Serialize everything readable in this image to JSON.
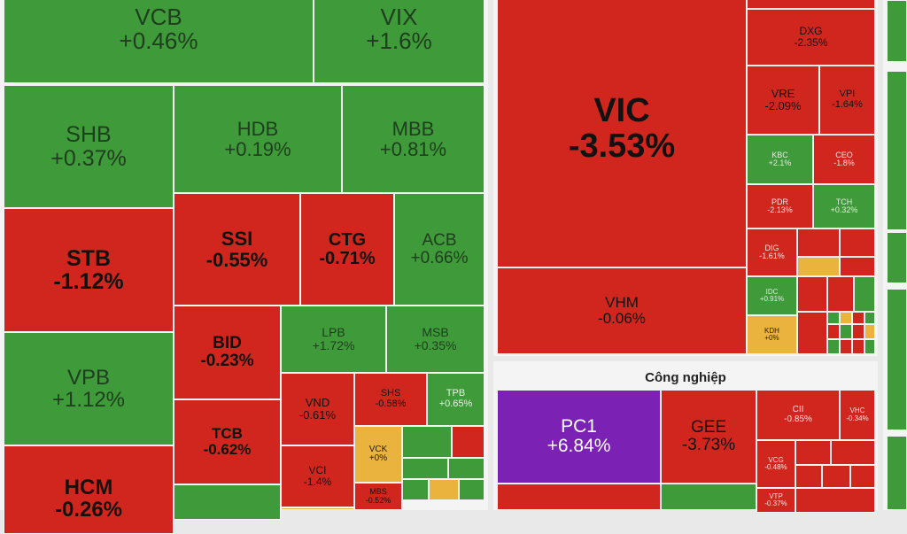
{
  "sector": {
    "industry_title": "Công nghiệp"
  },
  "colors": {
    "up": "#3f9a39",
    "down": "#d1261d",
    "flat": "#e9b33e",
    "ceiling": "#7b22b5"
  },
  "tiles": {
    "VCB": {
      "sym": "VCB",
      "chg": "+0.46%"
    },
    "VIX": {
      "sym": "VIX",
      "chg": "+1.6%"
    },
    "SHB": {
      "sym": "SHB",
      "chg": "+0.37%"
    },
    "HDB": {
      "sym": "HDB",
      "chg": "+0.19%"
    },
    "MBB": {
      "sym": "MBB",
      "chg": "+0.81%"
    },
    "STB": {
      "sym": "STB",
      "chg": "-1.12%"
    },
    "SSI": {
      "sym": "SSI",
      "chg": "-0.55%"
    },
    "CTG": {
      "sym": "CTG",
      "chg": "-0.71%"
    },
    "ACB": {
      "sym": "ACB",
      "chg": "+0.66%"
    },
    "BID": {
      "sym": "BID",
      "chg": "-0.23%"
    },
    "LPB": {
      "sym": "LPB",
      "chg": "+1.72%"
    },
    "MSB": {
      "sym": "MSB",
      "chg": "+0.35%"
    },
    "VPB": {
      "sym": "VPB",
      "chg": "+1.12%"
    },
    "TCB": {
      "sym": "TCB",
      "chg": "-0.62%"
    },
    "VND": {
      "sym": "VND",
      "chg": "-0.61%"
    },
    "SHS": {
      "sym": "SHS",
      "chg": "-0.58%"
    },
    "TPB": {
      "sym": "TPB",
      "chg": "+0.65%"
    },
    "VCK": {
      "sym": "VCK",
      "chg": "+0%"
    },
    "VCI": {
      "sym": "VCI",
      "chg": "-1.4%"
    },
    "MBS": {
      "sym": "MBS",
      "chg": "-0.52%"
    },
    "HCM": {
      "sym": "HCM",
      "chg": "-0.26%"
    },
    "VIC": {
      "sym": "VIC",
      "chg": "-3.53%"
    },
    "VHM": {
      "sym": "VHM",
      "chg": "-0.06%"
    },
    "DXG": {
      "sym": "DXG",
      "chg": "-2.35%"
    },
    "VRE": {
      "sym": "VRE",
      "chg": "-2.09%"
    },
    "VPI": {
      "sym": "VPI",
      "chg": "-1.64%"
    },
    "KBC": {
      "sym": "KBC",
      "chg": "+2.1%"
    },
    "CEO": {
      "sym": "CEO",
      "chg": "-1.8%"
    },
    "PDR": {
      "sym": "PDR",
      "chg": "-2.13%"
    },
    "TCH": {
      "sym": "TCH",
      "chg": "+0.32%"
    },
    "DIG": {
      "sym": "DIG",
      "chg": "-1.61%"
    },
    "IDC": {
      "sym": "IDC",
      "chg": "+0.91%"
    },
    "KDH": {
      "sym": "KDH",
      "chg": "+0%"
    },
    "PC1": {
      "sym": "PC1",
      "chg": "+6.84%"
    },
    "GEE": {
      "sym": "GEE",
      "chg": "-3.73%"
    },
    "CII": {
      "sym": "CII",
      "chg": "-0.85%"
    },
    "VHC": {
      "sym": "VHC",
      "chg": "-0.34%"
    },
    "VCG": {
      "sym": "VCG",
      "chg": "-0.48%"
    },
    "VTP": {
      "sym": "VTP",
      "chg": "-0.37%"
    }
  }
}
